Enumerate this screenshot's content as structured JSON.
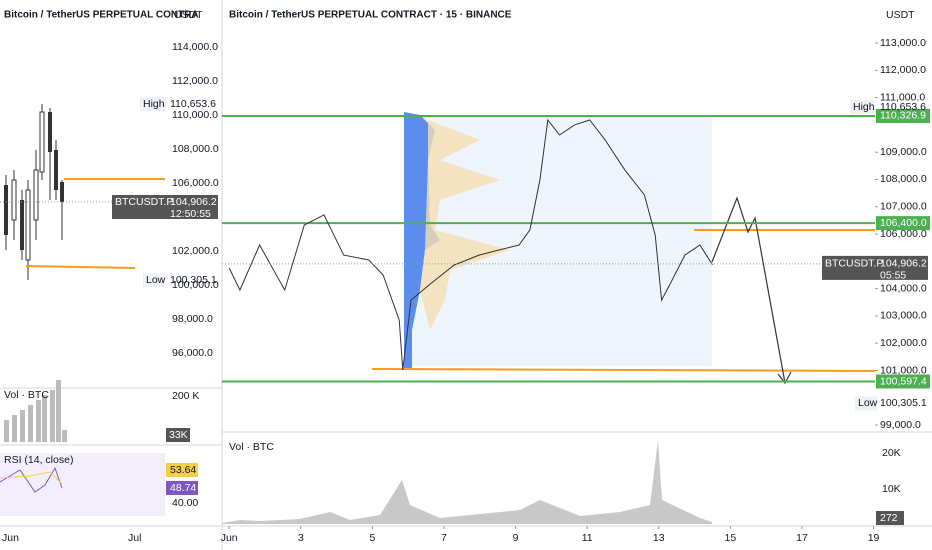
{
  "left_panel": {
    "title": "Bitcoin / TetherUS PERPETUAL CONTRA",
    "currency": "USDT",
    "yticks": [
      {
        "value": 114000,
        "label": "114,000.0"
      },
      {
        "value": 112000,
        "label": "112,000.0"
      },
      {
        "value": 110000,
        "label": "110,000.0"
      },
      {
        "value": 108000,
        "label": "108,000.0"
      },
      {
        "value": 106000,
        "label": "106,000.0"
      },
      {
        "value": 102000,
        "label": "102,000.0"
      },
      {
        "value": 100000,
        "label": "100,000.0"
      },
      {
        "value": 98000,
        "label": "98,000.0"
      },
      {
        "value": 96000,
        "label": "96,000.0"
      }
    ],
    "high": {
      "label": "High",
      "price": {
        "value": 110653.6,
        "label": "110,653.6"
      }
    },
    "last": {
      "symbol": "BTCUSDT.P",
      "price": {
        "value": 104906.2,
        "label": "104,906.2"
      },
      "countdown": "12:50:55"
    },
    "low": {
      "label": "Low",
      "price": {
        "value": 100305.1,
        "label": "100,305.1"
      }
    },
    "volume": {
      "title": "Vol · BTC",
      "tick": "200 K",
      "last": "33K"
    },
    "rsi": {
      "title": "RSI (14, close)",
      "values": [
        "53.64",
        "48.74"
      ],
      "tick": "40.00"
    },
    "xticks": [
      "Jun",
      "Jul"
    ]
  },
  "chart_data": {
    "type": "line",
    "title": "Bitcoin / TetherUS PERPETUAL CONTRACT · 15 · BINANCE",
    "currency": "USDT",
    "color": "#333333",
    "x": [
      1.0,
      1.3,
      1.85,
      2.55,
      3.1,
      3.65,
      4.2,
      4.9,
      5.3,
      5.75,
      5.85,
      6.08,
      6.58,
      7.28,
      7.98,
      8.55,
      9.1,
      9.4,
      9.68,
      9.9,
      10.23,
      10.65,
      11.07,
      11.5,
      12.05,
      12.6,
      12.9,
      13.08,
      13.3,
      13.73,
      14.15,
      14.5
    ],
    "values": [
      104755,
      103950,
      105600,
      103950,
      106330,
      106700,
      105230,
      105050,
      104500,
      102850,
      101020,
      103580,
      104130,
      104860,
      105230,
      105420,
      105600,
      106150,
      107980,
      110180,
      109630,
      110000,
      110180,
      109450,
      108350,
      107430,
      105960,
      103580,
      104130,
      105230,
      105600,
      104870
    ],
    "xlim": [
      0.8,
      19.04
    ],
    "ylim": [
      98746,
      114576
    ],
    "xticks": [
      {
        "value": 1,
        "label": "Jun"
      },
      3,
      5,
      7,
      9,
      11,
      13,
      15,
      17,
      19
    ],
    "yticks": [
      {
        "value": 113000,
        "label": "113,000.0"
      },
      {
        "value": 112000,
        "label": "112,000.0"
      },
      {
        "value": 111000,
        "label": "111,000.0"
      },
      {
        "value": 109000,
        "label": "109,000.0"
      },
      {
        "value": 108000,
        "label": "108,000.0"
      },
      {
        "value": 107000,
        "label": "107,000.0"
      },
      {
        "value": 106000,
        "label": "106,000.0"
      },
      {
        "value": 104000,
        "label": "104,000.0"
      },
      {
        "value": 103000,
        "label": "103,000.0"
      },
      {
        "value": 102000,
        "label": "102,000.0"
      },
      {
        "value": 101000,
        "label": "101,000.0"
      },
      {
        "value": 99000,
        "label": "99,000.0"
      }
    ],
    "levels": [
      {
        "value": 110326.9,
        "label": "110,326.9"
      },
      {
        "value": 106400,
        "label": "106,400.0"
      },
      {
        "value": 100597.4,
        "label": "100,597.4"
      }
    ],
    "high": {
      "label": "High",
      "price": {
        "value": 110653.6,
        "label": "110,653.6"
      }
    },
    "last": {
      "symbol": "BTCUSDT.P",
      "price": {
        "value": 104906.2,
        "label": "104,906.2"
      },
      "countdown": "05:55"
    },
    "low": {
      "label": "Low",
      "price": {
        "value": 100305.1,
        "label": "100,305.1"
      }
    },
    "volume": {
      "title": "Vol · BTC",
      "ticks": [
        "20K",
        "10K"
      ],
      "last": "272"
    }
  }
}
